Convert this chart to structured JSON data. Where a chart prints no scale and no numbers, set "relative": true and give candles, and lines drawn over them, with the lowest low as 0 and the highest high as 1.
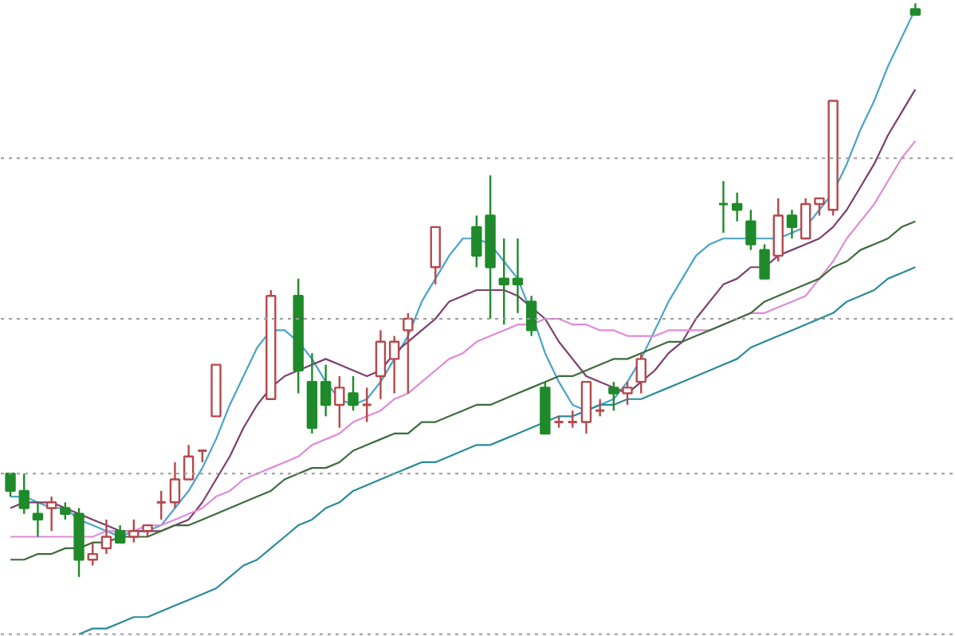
{
  "chart_data": {
    "type": "candlestick",
    "relative": true,
    "categories": [
      null,
      null,
      null,
      null,
      null,
      null,
      null,
      null,
      null,
      null,
      null,
      null,
      null,
      null,
      null,
      null,
      null,
      null,
      null,
      null,
      null,
      null,
      null,
      null,
      null,
      null,
      null,
      null,
      null,
      null,
      null,
      null,
      null,
      null,
      null,
      null,
      null,
      null,
      null,
      null,
      null,
      null,
      null,
      null,
      null,
      null,
      null,
      null,
      null,
      null,
      null,
      null,
      null,
      null,
      null,
      null,
      null,
      null,
      null,
      null,
      null,
      null,
      null,
      null,
      null,
      null,
      null
    ],
    "ohlc": [
      [
        0.18,
        0.18,
        0.14,
        0.15
      ],
      [
        0.15,
        0.18,
        0.11,
        0.12
      ],
      [
        0.11,
        0.13,
        0.07,
        0.1
      ],
      [
        0.12,
        0.14,
        0.08,
        0.13
      ],
      [
        0.12,
        0.13,
        0.1,
        0.11
      ],
      [
        0.11,
        0.12,
        0,
        0.03
      ],
      [
        0.03,
        0.06,
        0.02,
        0.04
      ],
      [
        0.05,
        0.1,
        0.04,
        0.07
      ],
      [
        0.08,
        0.09,
        0.06,
        0.06
      ],
      [
        0.07,
        0.1,
        0.06,
        0.08
      ],
      [
        0.08,
        0.09,
        0.07,
        0.09
      ],
      [
        0.13,
        0.15,
        0.1,
        0.13
      ],
      [
        0.13,
        0.2,
        0.12,
        0.17
      ],
      [
        0.17,
        0.23,
        0.17,
        0.21
      ],
      [
        0.22,
        0.22,
        0.2,
        0.22
      ],
      [
        0.28,
        0.37,
        0.28,
        0.37
      ],
      null,
      null,
      null,
      [
        0.31,
        0.5,
        0.31,
        0.49
      ],
      null,
      [
        0.49,
        0.52,
        0.32,
        0.36
      ],
      [
        0.34,
        0.39,
        0.25,
        0.26
      ],
      [
        0.34,
        0.37,
        0.28,
        0.3
      ],
      [
        0.3,
        0.35,
        0.26,
        0.33
      ],
      [
        0.32,
        0.35,
        0.29,
        0.3
      ],
      [
        0.3,
        0.33,
        0.27,
        0.3
      ],
      [
        0.35,
        0.43,
        0.31,
        0.41
      ],
      [
        0.38,
        0.42,
        0.32,
        0.41
      ],
      [
        0.43,
        0.46,
        0.32,
        0.45
      ],
      null,
      [
        0.54,
        0.61,
        0.51,
        0.61
      ],
      null,
      null,
      [
        0.61,
        0.63,
        0.54,
        0.56
      ],
      [
        0.63,
        0.7,
        0.45,
        0.54
      ],
      [
        0.52,
        0.59,
        0.44,
        0.51
      ],
      [
        0.52,
        0.59,
        0.46,
        0.51
      ],
      [
        0.48,
        0.49,
        0.42,
        0.43
      ],
      [
        0.33,
        0.34,
        0.25,
        0.25
      ],
      [
        0.27,
        0.28,
        0.26,
        0.27
      ],
      [
        0.27,
        0.29,
        0.26,
        0.27
      ],
      [
        0.27,
        0.34,
        0.25,
        0.34
      ],
      [
        0.29,
        0.31,
        0.28,
        0.29
      ],
      [
        0.33,
        0.34,
        0.29,
        0.32
      ],
      [
        0.32,
        0.34,
        0.3,
        0.33
      ],
      [
        0.34,
        0.39,
        0.32,
        0.38
      ],
      null,
      null,
      null,
      null,
      null,
      [
        0.65,
        0.69,
        0.6,
        0.65
      ],
      [
        0.65,
        0.67,
        0.62,
        0.64
      ],
      [
        0.62,
        0.64,
        0.57,
        0.58
      ],
      [
        0.57,
        0.58,
        0.52,
        0.52
      ],
      [
        0.56,
        0.66,
        0.55,
        0.63
      ],
      [
        0.63,
        0.64,
        0.59,
        0.61
      ],
      [
        0.59,
        0.66,
        0.59,
        0.65
      ],
      [
        0.65,
        0.66,
        0.63,
        0.66
      ],
      [
        0.64,
        0.83,
        0.63,
        0.83
      ],
      null,
      null,
      null,
      null,
      null,
      [
        0.99,
        1,
        0.98,
        0.98
      ]
    ],
    "colors": [
      "#1f8a2a",
      "#1f8a2a",
      "#1f8a2a",
      "#b5484b",
      "#1f8a2a",
      "#1f8a2a",
      "#b5484b",
      "#b5484b",
      "#1f8a2a",
      "#b5484b",
      "#b5484b",
      "#b5484b",
      "#b5484b",
      "#b5484b",
      "#b5484b",
      "#b5484b",
      null,
      null,
      null,
      "#b5484b",
      null,
      "#1f8a2a",
      "#1f8a2a",
      "#1f8a2a",
      "#b5484b",
      "#1f8a2a",
      "#b5484b",
      "#b5484b",
      "#b5484b",
      "#b5484b",
      null,
      "#b5484b",
      null,
      null,
      "#1f8a2a",
      "#1f8a2a",
      "#1f8a2a",
      "#1f8a2a",
      "#1f8a2a",
      "#1f8a2a",
      "#b5484b",
      "#b5484b",
      "#b5484b",
      "#b5484b",
      "#1f8a2a",
      "#b5484b",
      "#b5484b",
      null,
      null,
      null,
      null,
      null,
      "#1f8a2a",
      "#1f8a2a",
      "#1f8a2a",
      "#1f8a2a",
      "#b5484b",
      "#1f8a2a",
      "#b5484b",
      "#b5484b",
      "#b5484b",
      null,
      null,
      null,
      null,
      null,
      "#1f8a2a"
    ],
    "series": [
      {
        "type": "line",
        "color": "#4aa3c8",
        "values": [
          0.14,
          0.14,
          0.13,
          0.12,
          0.12,
          0.1,
          0.09,
          0.08,
          0.07,
          0.08,
          0.08,
          0.09,
          0.12,
          0.15,
          0.19,
          0.24,
          0.3,
          0.35,
          0.4,
          0.43,
          0.43,
          0.41,
          0.38,
          0.34,
          0.31,
          0.3,
          0.31,
          0.34,
          0.38,
          0.42,
          0.48,
          0.52,
          0.56,
          0.59,
          0.59,
          0.58,
          0.55,
          0.52,
          0.46,
          0.39,
          0.34,
          0.3,
          0.29,
          0.3,
          0.31,
          0.34,
          0.38,
          0.43,
          0.48,
          0.52,
          0.56,
          0.58,
          0.59,
          0.59,
          0.59,
          0.59,
          0.59,
          0.6,
          0.61,
          0.64,
          0.67,
          0.72,
          0.78,
          0.83,
          0.89,
          0.94,
          0.99
        ]
      },
      {
        "type": "line",
        "color": "#7b3f6e",
        "values": [
          0.12,
          0.13,
          0.13,
          0.13,
          0.12,
          0.11,
          0.1,
          0.09,
          0.08,
          0.08,
          0.08,
          0.08,
          0.09,
          0.1,
          0.13,
          0.17,
          0.21,
          0.26,
          0.3,
          0.33,
          0.35,
          0.36,
          0.37,
          0.38,
          0.37,
          0.36,
          0.35,
          0.36,
          0.39,
          0.41,
          0.43,
          0.45,
          0.48,
          0.49,
          0.5,
          0.5,
          0.5,
          0.49,
          0.47,
          0.45,
          0.41,
          0.38,
          0.35,
          0.34,
          0.33,
          0.32,
          0.34,
          0.36,
          0.39,
          0.41,
          0.45,
          0.48,
          0.51,
          0.52,
          0.54,
          0.54,
          0.56,
          0.57,
          0.58,
          0.59,
          0.61,
          0.64,
          0.68,
          0.72,
          0.77,
          0.81,
          0.85
        ]
      },
      {
        "type": "line",
        "color": "#e08ad8",
        "values": [
          0.07,
          0.07,
          0.07,
          0.07,
          0.07,
          0.07,
          0.07,
          0.08,
          0.08,
          0.08,
          0.09,
          0.09,
          0.1,
          0.11,
          0.12,
          0.14,
          0.15,
          0.17,
          0.18,
          0.19,
          0.2,
          0.21,
          0.23,
          0.24,
          0.25,
          0.27,
          0.28,
          0.29,
          0.31,
          0.32,
          0.34,
          0.36,
          0.38,
          0.39,
          0.41,
          0.42,
          0.43,
          0.44,
          0.44,
          0.45,
          0.45,
          0.44,
          0.44,
          0.43,
          0.43,
          0.42,
          0.42,
          0.42,
          0.43,
          0.43,
          0.43,
          0.43,
          0.44,
          0.45,
          0.46,
          0.46,
          0.47,
          0.48,
          0.49,
          0.52,
          0.55,
          0.59,
          0.62,
          0.65,
          0.69,
          0.73,
          0.76
        ]
      },
      {
        "type": "line",
        "color": "#3d6b3d",
        "values": [
          0.03,
          0.03,
          0.04,
          0.04,
          0.05,
          0.05,
          0.06,
          0.06,
          0.07,
          0.07,
          0.07,
          0.08,
          0.09,
          0.09,
          0.1,
          0.11,
          0.12,
          0.13,
          0.14,
          0.15,
          0.17,
          0.18,
          0.19,
          0.19,
          0.2,
          0.22,
          0.23,
          0.24,
          0.25,
          0.25,
          0.27,
          0.27,
          0.28,
          0.29,
          0.3,
          0.3,
          0.31,
          0.32,
          0.33,
          0.34,
          0.35,
          0.35,
          0.36,
          0.37,
          0.38,
          0.38,
          0.39,
          0.4,
          0.41,
          0.41,
          0.42,
          0.43,
          0.44,
          0.45,
          0.46,
          0.48,
          0.49,
          0.5,
          0.51,
          0.52,
          0.54,
          0.55,
          0.57,
          0.58,
          0.59,
          0.61,
          0.62
        ]
      },
      {
        "type": "line",
        "color": "#2a8a9a",
        "values": [
          null,
          null,
          null,
          null,
          null,
          -0.1,
          -0.09,
          -0.09,
          -0.08,
          -0.07,
          -0.07,
          -0.06,
          -0.05,
          -0.04,
          -0.03,
          -0.02,
          0,
          0.02,
          0.03,
          0.05,
          0.07,
          0.09,
          0.1,
          0.12,
          0.13,
          0.15,
          0.16,
          0.17,
          0.18,
          0.19,
          0.2,
          0.2,
          0.21,
          0.22,
          0.23,
          0.23,
          0.24,
          0.25,
          0.26,
          0.27,
          0.28,
          0.28,
          0.29,
          0.3,
          0.3,
          0.31,
          0.31,
          0.32,
          0.33,
          0.34,
          0.35,
          0.36,
          0.37,
          0.38,
          0.4,
          0.41,
          0.42,
          0.43,
          0.44,
          0.45,
          0.46,
          0.48,
          0.49,
          0.5,
          0.52,
          0.53,
          0.54
        ]
      }
    ],
    "ref_lines": [
      {
        "axis": "y",
        "value": 0.73,
        "color": "#9a9a9a",
        "line_style": "dotted"
      },
      {
        "axis": "y",
        "value": 0.45,
        "color": "#9a9a9a",
        "line_style": "dotted"
      },
      {
        "axis": "y",
        "value": 0.18,
        "color": "#9a9a9a",
        "line_style": "dotted"
      },
      {
        "axis": "y",
        "value": -0.1,
        "color": "#9a9a9a",
        "line_style": "dotted"
      }
    ]
  }
}
